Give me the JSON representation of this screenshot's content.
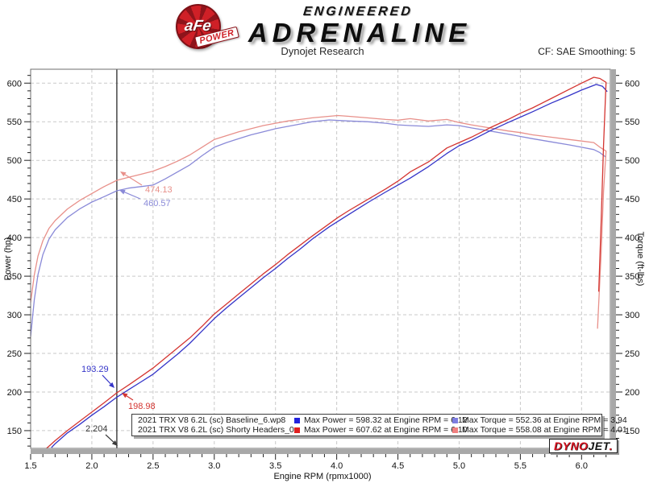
{
  "header": {
    "badge": {
      "brand": "aFe",
      "sub": "POWER"
    },
    "title_top": "ENGINEERED",
    "title_main": "ADRENALINE",
    "subtitle": "Dynojet Research",
    "cf_label": "CF: SAE Smoothing: 5"
  },
  "chart_data": {
    "type": "line",
    "xlabel": "Engine RPM (rpmx1000)",
    "ylabel_left": "Power (hp)",
    "ylabel_right": "Torque (ft-lbs)",
    "xlim": [
      1.5,
      6.235
    ],
    "ylim": [
      127,
      618
    ],
    "x_ticks": [
      1.5,
      2.0,
      2.5,
      3.0,
      3.5,
      4.0,
      4.5,
      5.0,
      5.5,
      6.0
    ],
    "y_ticks": [
      150,
      200,
      250,
      300,
      350,
      400,
      450,
      500,
      550,
      600
    ],
    "grid": true,
    "legend_position": "bottom",
    "cursor_rpm": 2.204,
    "colors": {
      "grid": "#c9c9c9",
      "cursor": "#3a3a3a",
      "power_baseline": "#3434c8",
      "power_headers": "#d43531",
      "torque_baseline": "#8a8ad8",
      "torque_headers": "#e8908a"
    },
    "series": [
      {
        "id": "baseline_torque",
        "name": "Baseline Torque (ft-lbs)",
        "color_key": "torque_baseline",
        "points": [
          [
            1.5,
            272
          ],
          [
            1.53,
            320
          ],
          [
            1.56,
            352
          ],
          [
            1.6,
            378
          ],
          [
            1.65,
            398
          ],
          [
            1.7,
            410
          ],
          [
            1.8,
            426
          ],
          [
            1.9,
            437
          ],
          [
            2.0,
            446
          ],
          [
            2.1,
            453
          ],
          [
            2.204,
            460.57
          ],
          [
            2.3,
            464
          ],
          [
            2.4,
            466
          ],
          [
            2.5,
            468
          ],
          [
            2.6,
            476
          ],
          [
            2.7,
            485
          ],
          [
            2.8,
            494
          ],
          [
            2.9,
            506
          ],
          [
            3.0,
            517
          ],
          [
            3.1,
            523
          ],
          [
            3.2,
            528
          ],
          [
            3.3,
            533
          ],
          [
            3.4,
            537
          ],
          [
            3.5,
            541
          ],
          [
            3.6,
            544
          ],
          [
            3.7,
            547
          ],
          [
            3.8,
            550
          ],
          [
            3.94,
            552.36
          ],
          [
            4.1,
            551
          ],
          [
            4.25,
            550
          ],
          [
            4.4,
            548
          ],
          [
            4.5,
            546
          ],
          [
            4.6,
            545
          ],
          [
            4.75,
            544
          ],
          [
            4.9,
            546
          ],
          [
            5.0,
            545
          ],
          [
            5.1,
            542
          ],
          [
            5.25,
            538
          ],
          [
            5.4,
            534
          ],
          [
            5.5,
            531
          ],
          [
            5.6,
            528
          ],
          [
            5.75,
            524
          ],
          [
            5.9,
            520
          ],
          [
            6.0,
            517
          ],
          [
            6.1,
            514
          ],
          [
            6.15,
            510
          ],
          [
            6.2,
            504
          ]
        ]
      },
      {
        "id": "headers_torque",
        "name": "Shorty Headers Torque (ft-lbs)",
        "color_key": "torque_headers",
        "points": [
          [
            1.5,
            316
          ],
          [
            1.53,
            352
          ],
          [
            1.56,
            376
          ],
          [
            1.6,
            396
          ],
          [
            1.65,
            412
          ],
          [
            1.7,
            422
          ],
          [
            1.8,
            437
          ],
          [
            1.9,
            448
          ],
          [
            2.0,
            457
          ],
          [
            2.1,
            466
          ],
          [
            2.204,
            474.13
          ],
          [
            2.3,
            478
          ],
          [
            2.4,
            482
          ],
          [
            2.5,
            486
          ],
          [
            2.6,
            492
          ],
          [
            2.7,
            499
          ],
          [
            2.8,
            507
          ],
          [
            2.9,
            517
          ],
          [
            3.0,
            527
          ],
          [
            3.1,
            532
          ],
          [
            3.2,
            537
          ],
          [
            3.3,
            541
          ],
          [
            3.4,
            545
          ],
          [
            3.5,
            548
          ],
          [
            3.6,
            551
          ],
          [
            3.7,
            553
          ],
          [
            3.8,
            555
          ],
          [
            4.01,
            558.08
          ],
          [
            4.1,
            557
          ],
          [
            4.25,
            555
          ],
          [
            4.4,
            553
          ],
          [
            4.5,
            552
          ],
          [
            4.6,
            554
          ],
          [
            4.75,
            551
          ],
          [
            4.9,
            553
          ],
          [
            5.0,
            549
          ],
          [
            5.1,
            546
          ],
          [
            5.25,
            542
          ],
          [
            5.4,
            538
          ],
          [
            5.5,
            536
          ],
          [
            5.6,
            533
          ],
          [
            5.75,
            530
          ],
          [
            5.9,
            527
          ],
          [
            6.0,
            525
          ],
          [
            6.1,
            523
          ],
          [
            6.15,
            517
          ],
          [
            6.2,
            512
          ],
          [
            6.18,
            460
          ],
          [
            6.16,
            380
          ],
          [
            6.13,
            282
          ]
        ]
      },
      {
        "id": "baseline_power",
        "name": "Baseline Power (hp)",
        "color_key": "power_baseline",
        "points": [
          [
            1.67,
            128
          ],
          [
            1.7,
            133
          ],
          [
            1.8,
            147
          ],
          [
            1.9,
            158
          ],
          [
            2.0,
            170
          ],
          [
            2.1,
            181
          ],
          [
            2.204,
            193.29
          ],
          [
            2.3,
            203
          ],
          [
            2.4,
            213
          ],
          [
            2.5,
            223
          ],
          [
            2.6,
            236
          ],
          [
            2.7,
            249
          ],
          [
            2.8,
            263
          ],
          [
            2.9,
            279
          ],
          [
            3.0,
            295
          ],
          [
            3.1,
            309
          ],
          [
            3.2,
            322
          ],
          [
            3.3,
            335
          ],
          [
            3.4,
            348
          ],
          [
            3.5,
            360
          ],
          [
            3.6,
            373
          ],
          [
            3.7,
            385
          ],
          [
            3.8,
            398
          ],
          [
            3.94,
            414
          ],
          [
            4.1,
            430
          ],
          [
            4.25,
            445
          ],
          [
            4.4,
            459
          ],
          [
            4.5,
            468
          ],
          [
            4.6,
            477
          ],
          [
            4.75,
            492
          ],
          [
            4.9,
            509
          ],
          [
            5.0,
            519
          ],
          [
            5.1,
            526
          ],
          [
            5.25,
            538
          ],
          [
            5.4,
            549
          ],
          [
            5.5,
            556
          ],
          [
            5.6,
            563
          ],
          [
            5.75,
            574
          ],
          [
            5.9,
            584
          ],
          [
            6.0,
            591
          ],
          [
            6.12,
            598.32
          ],
          [
            6.17,
            596
          ],
          [
            6.21,
            589
          ]
        ]
      },
      {
        "id": "headers_power",
        "name": "Shorty Headers Power (hp)",
        "color_key": "power_headers",
        "points": [
          [
            1.63,
            127
          ],
          [
            1.7,
            137
          ],
          [
            1.8,
            150
          ],
          [
            1.9,
            162
          ],
          [
            2.0,
            174
          ],
          [
            2.1,
            186
          ],
          [
            2.204,
            198.98
          ],
          [
            2.3,
            209
          ],
          [
            2.4,
            220
          ],
          [
            2.5,
            231
          ],
          [
            2.6,
            244
          ],
          [
            2.7,
            257
          ],
          [
            2.8,
            270
          ],
          [
            2.9,
            285
          ],
          [
            3.0,
            301
          ],
          [
            3.1,
            314
          ],
          [
            3.2,
            327
          ],
          [
            3.3,
            340
          ],
          [
            3.4,
            353
          ],
          [
            3.5,
            365
          ],
          [
            3.6,
            378
          ],
          [
            3.7,
            390
          ],
          [
            3.8,
            402
          ],
          [
            4.01,
            426
          ],
          [
            4.1,
            435
          ],
          [
            4.25,
            449
          ],
          [
            4.4,
            463
          ],
          [
            4.5,
            473
          ],
          [
            4.6,
            485
          ],
          [
            4.75,
            498
          ],
          [
            4.9,
            516
          ],
          [
            5.0,
            523
          ],
          [
            5.1,
            530
          ],
          [
            5.25,
            542
          ],
          [
            5.4,
            553
          ],
          [
            5.5,
            561
          ],
          [
            5.6,
            568
          ],
          [
            5.75,
            580
          ],
          [
            5.9,
            592
          ],
          [
            6.0,
            600
          ],
          [
            6.1,
            607.62
          ],
          [
            6.15,
            606
          ],
          [
            6.2,
            601
          ],
          [
            6.18,
            520
          ],
          [
            6.16,
            420
          ],
          [
            6.14,
            330
          ]
        ]
      }
    ],
    "annotations": [
      {
        "label": "474.13",
        "series": "torque_headers",
        "text": [
          180,
          239
        ],
        "tail": [
          176,
          230
        ],
        "tip": [
          149,
          213
        ]
      },
      {
        "label": "460.57",
        "series": "torque_baseline",
        "text": [
          178,
          256
        ],
        "tail": [
          174,
          247
        ],
        "tip": [
          148,
          236
        ]
      },
      {
        "label": "193.29",
        "series": "power_baseline",
        "text": [
          101,
          462
        ],
        "tail": [
          127,
          466
        ],
        "tip": [
          142,
          482
        ]
      },
      {
        "label": "198.98",
        "series": "power_headers",
        "text": [
          159,
          508
        ],
        "tail": [
          165,
          497
        ],
        "tip": [
          151,
          488
        ]
      },
      {
        "label": "2.204",
        "series": "cursor",
        "text": [
          106,
          536
        ],
        "tail": [
          131,
          540
        ],
        "tip": [
          146,
          554
        ]
      }
    ]
  },
  "legend": {
    "rows": [
      {
        "name": "2021 TRX V8 6.2L (sc) Baseline_6.wp8",
        "power_color": "#2222dd",
        "power_text": "Max Power = 598.32 at Engine RPM = 6.12",
        "torque_color": "#7d7de0",
        "torque_text": "Max Torque = 552.36 at Engine RPM = 3.94"
      },
      {
        "name": "2021 TRX V8 6.2L (sc) Shorty Headers_0.wp8",
        "power_color": "#e02020",
        "power_text": "Max Power = 607.62 at Engine RPM = 6.10",
        "torque_color": "#f08080",
        "torque_text": "Max Torque = 558.08 at Engine RPM = 4.01"
      }
    ]
  },
  "watermark": {
    "red": "DYNO",
    "black": "JET",
    "dot": "."
  }
}
